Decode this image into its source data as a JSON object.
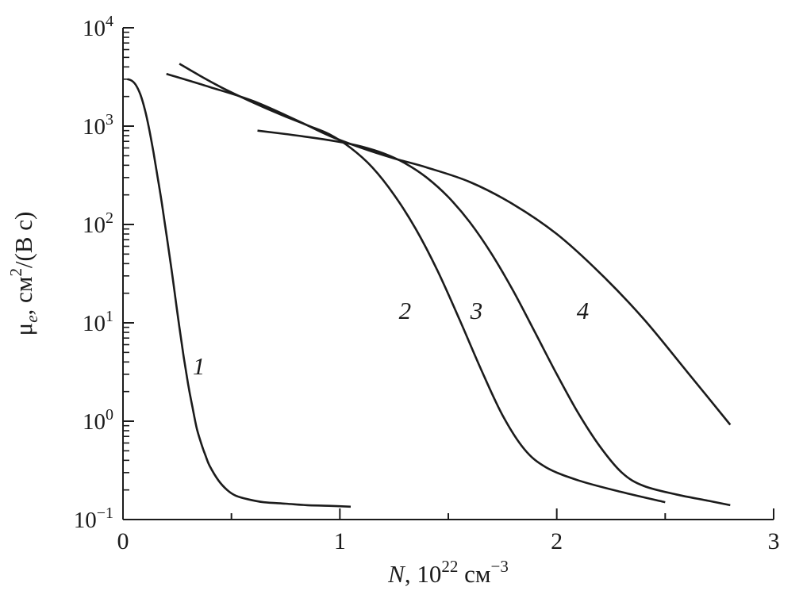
{
  "figure": {
    "background": "#ffffff",
    "ink_color": "#1b1b1b"
  },
  "chart_data": {
    "type": "line",
    "title": "",
    "grid": false,
    "legend": "none",
    "x_axis": {
      "label_runs": [
        {
          "t": "N",
          "italic": true
        },
        {
          "t": ", 10"
        },
        {
          "t": "22",
          "sup": true
        },
        {
          "t": " см"
        },
        {
          "t": "−3",
          "sup": true
        }
      ],
      "min": 0,
      "max": 3,
      "major_ticks": [
        0,
        1,
        2,
        3
      ],
      "tick_labels": [
        "0",
        "1",
        "2",
        "3"
      ],
      "minor_ticks": [
        0.5,
        1.5,
        2.5
      ]
    },
    "y_axis": {
      "label_runs": [
        {
          "t": "μ"
        },
        {
          "t": "e",
          "italic": true,
          "sub": true
        },
        {
          "t": ", см"
        },
        {
          "t": "2",
          "sup": true
        },
        {
          "t": "/(В с)"
        }
      ],
      "scale": "log",
      "min": 0.1,
      "max": 10000,
      "ticks": [
        {
          "v": 0.1,
          "runs": [
            {
              "t": "10"
            },
            {
              "t": "−1",
              "sup": true
            }
          ]
        },
        {
          "v": 1,
          "runs": [
            {
              "t": "10"
            },
            {
              "t": "0",
              "sup": true
            }
          ]
        },
        {
          "v": 10,
          "runs": [
            {
              "t": "10"
            },
            {
              "t": "1",
              "sup": true
            }
          ]
        },
        {
          "v": 100,
          "runs": [
            {
              "t": "10"
            },
            {
              "t": "2",
              "sup": true
            }
          ]
        },
        {
          "v": 1000,
          "runs": [
            {
              "t": "10"
            },
            {
              "t": "3",
              "sup": true
            }
          ]
        },
        {
          "v": 10000,
          "runs": [
            {
              "t": "10"
            },
            {
              "t": "4",
              "sup": true
            }
          ]
        }
      ]
    },
    "series": [
      {
        "name": "1",
        "points": [
          [
            0.02,
            3000
          ],
          [
            0.04,
            2900
          ],
          [
            0.06,
            2600
          ],
          [
            0.08,
            2100
          ],
          [
            0.1,
            1500
          ],
          [
            0.12,
            950
          ],
          [
            0.14,
            550
          ],
          [
            0.16,
            300
          ],
          [
            0.18,
            160
          ],
          [
            0.2,
            80
          ],
          [
            0.22,
            40
          ],
          [
            0.24,
            19
          ],
          [
            0.26,
            9
          ],
          [
            0.28,
            4.5
          ],
          [
            0.3,
            2.4
          ],
          [
            0.32,
            1.4
          ],
          [
            0.34,
            0.85
          ],
          [
            0.36,
            0.6
          ],
          [
            0.38,
            0.45
          ],
          [
            0.4,
            0.35
          ],
          [
            0.44,
            0.25
          ],
          [
            0.48,
            0.2
          ],
          [
            0.52,
            0.175
          ],
          [
            0.58,
            0.16
          ],
          [
            0.65,
            0.15
          ],
          [
            0.75,
            0.145
          ],
          [
            0.85,
            0.14
          ],
          [
            0.95,
            0.138
          ],
          [
            1.05,
            0.135
          ]
        ]
      },
      {
        "name": "2",
        "points": [
          [
            0.26,
            4300
          ],
          [
            0.35,
            3300
          ],
          [
            0.45,
            2500
          ],
          [
            0.55,
            1950
          ],
          [
            0.65,
            1550
          ],
          [
            0.75,
            1250
          ],
          [
            0.85,
            1020
          ],
          [
            0.95,
            830
          ],
          [
            1.05,
            600
          ],
          [
            1.15,
            380
          ],
          [
            1.25,
            200
          ],
          [
            1.35,
            90
          ],
          [
            1.45,
            34
          ],
          [
            1.55,
            11
          ],
          [
            1.65,
            3.4
          ],
          [
            1.75,
            1.15
          ],
          [
            1.85,
            0.52
          ],
          [
            1.95,
            0.34
          ],
          [
            2.1,
            0.25
          ],
          [
            2.3,
            0.19
          ],
          [
            2.5,
            0.15
          ]
        ]
      },
      {
        "name": "3",
        "points": [
          [
            0.62,
            900
          ],
          [
            0.75,
            830
          ],
          [
            0.88,
            760
          ],
          [
            1.0,
            690
          ],
          [
            1.1,
            620
          ],
          [
            1.2,
            530
          ],
          [
            1.3,
            420
          ],
          [
            1.4,
            300
          ],
          [
            1.5,
            190
          ],
          [
            1.6,
            105
          ],
          [
            1.7,
            50
          ],
          [
            1.8,
            21
          ],
          [
            1.9,
            8
          ],
          [
            2.0,
            3
          ],
          [
            2.1,
            1.2
          ],
          [
            2.2,
            0.55
          ],
          [
            2.3,
            0.3
          ],
          [
            2.4,
            0.22
          ],
          [
            2.55,
            0.18
          ],
          [
            2.7,
            0.155
          ],
          [
            2.8,
            0.14
          ]
        ]
      },
      {
        "name": "4",
        "points": [
          [
            0.2,
            3400
          ],
          [
            0.4,
            2500
          ],
          [
            0.6,
            1800
          ],
          [
            0.8,
            1150
          ],
          [
            0.95,
            800
          ],
          [
            1.1,
            600
          ],
          [
            1.25,
            470
          ],
          [
            1.4,
            380
          ],
          [
            1.6,
            270
          ],
          [
            1.8,
            160
          ],
          [
            2.0,
            80
          ],
          [
            2.2,
            32
          ],
          [
            2.4,
            11
          ],
          [
            2.6,
            3.2
          ],
          [
            2.8,
            0.92
          ]
        ]
      }
    ],
    "annotations": [
      {
        "text": "1",
        "x": 0.35,
        "y": 3.0
      },
      {
        "text": "2",
        "x": 1.3,
        "y": 11
      },
      {
        "text": "3",
        "x": 1.63,
        "y": 11
      },
      {
        "text": "4",
        "x": 2.12,
        "y": 11
      }
    ]
  }
}
